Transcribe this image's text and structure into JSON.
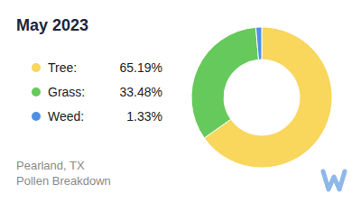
{
  "chart_data": {
    "type": "pie",
    "title": "May 2023",
    "categories": [
      "Tree:",
      "Grass:",
      "Weed:"
    ],
    "values": [
      65.19,
      33.48,
      1.33
    ],
    "value_labels": [
      "65.19%",
      "33.48%",
      "1.33%"
    ],
    "colors": [
      "#f9d65c",
      "#66c95b",
      "#4d90e6"
    ],
    "legend": "left",
    "annotations": [
      "Pearland, TX",
      "Pollen Breakdown"
    ]
  }
}
